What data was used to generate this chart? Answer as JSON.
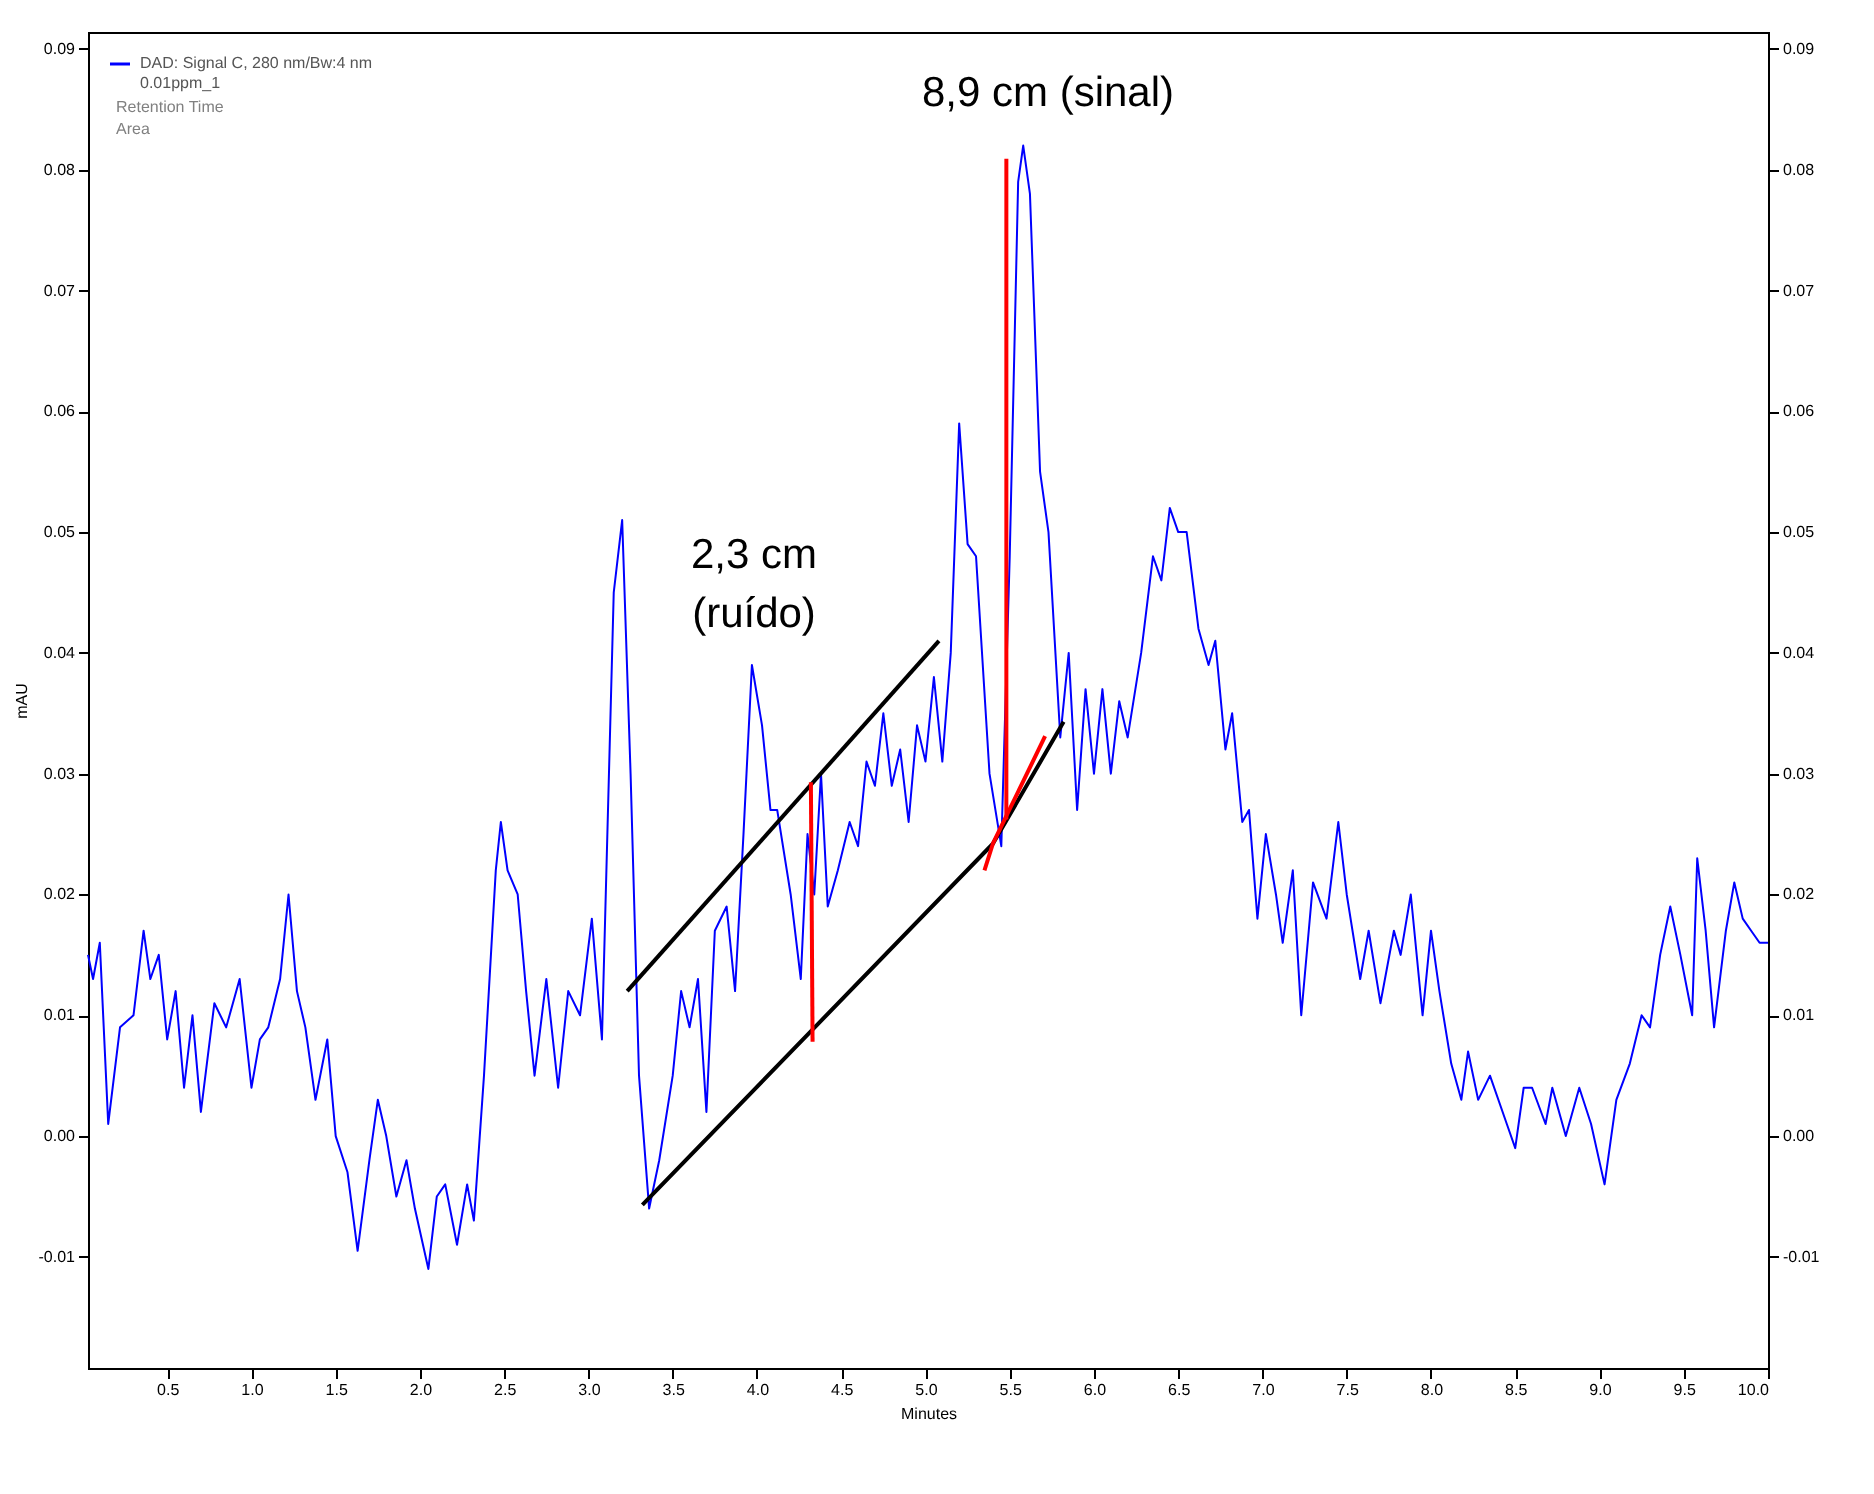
{
  "chart_data": {
    "type": "line",
    "xlabel": "Minutes",
    "ylabel": "mAU",
    "xlim": [
      0.03,
      10.0
    ],
    "ylim": [
      -0.0192,
      0.0914
    ],
    "y2lim": [
      -0.0192,
      0.0914
    ],
    "xticks": [
      {
        "value": 0.5,
        "label": "0.5"
      },
      {
        "value": 1,
        "label": "1.0"
      },
      {
        "value": 1.5,
        "label": "1.5"
      },
      {
        "value": 2,
        "label": "2.0"
      },
      {
        "value": 2.5,
        "label": "2.5"
      },
      {
        "value": 3,
        "label": "3.0"
      },
      {
        "value": 3.5,
        "label": "3.5"
      },
      {
        "value": 4,
        "label": "4.0"
      },
      {
        "value": 4.5,
        "label": "4.5"
      },
      {
        "value": 5,
        "label": "5.0"
      },
      {
        "value": 5.5,
        "label": "5.5"
      },
      {
        "value": 6,
        "label": "6.0"
      },
      {
        "value": 6.5,
        "label": "6.5"
      },
      {
        "value": 7,
        "label": "7.0"
      },
      {
        "value": 7.5,
        "label": "7.5"
      },
      {
        "value": 8,
        "label": "8.0"
      },
      {
        "value": 8.5,
        "label": "8.5"
      },
      {
        "value": 9,
        "label": "9.0"
      },
      {
        "value": 9.5,
        "label": "9.5"
      },
      {
        "value": 10,
        "label": "10.0"
      }
    ],
    "yticks": [
      {
        "value": -0.01,
        "label": "-0.01"
      },
      {
        "value": 0,
        "label": "0.00"
      },
      {
        "value": 0.01,
        "label": "0.01"
      },
      {
        "value": 0.02,
        "label": "0.02"
      },
      {
        "value": 0.03,
        "label": "0.03"
      },
      {
        "value": 0.04,
        "label": "0.04"
      },
      {
        "value": 0.05,
        "label": "0.05"
      },
      {
        "value": 0.06,
        "label": "0.06"
      },
      {
        "value": 0.07,
        "label": "0.07"
      },
      {
        "value": 0.08,
        "label": "0.08"
      },
      {
        "value": 0.09,
        "label": "0.09"
      }
    ],
    "y2ticks": [
      {
        "value": -0.01,
        "label": "-0.01"
      },
      {
        "value": 0,
        "label": "0.00"
      },
      {
        "value": 0.01,
        "label": "0.01"
      },
      {
        "value": 0.02,
        "label": "0.02"
      },
      {
        "value": 0.03,
        "label": "0.03"
      },
      {
        "value": 0.04,
        "label": "0.04"
      },
      {
        "value": 0.05,
        "label": "0.05"
      },
      {
        "value": 0.06,
        "label": "0.06"
      },
      {
        "value": 0.07,
        "label": "0.07"
      },
      {
        "value": 0.08,
        "label": "0.08"
      },
      {
        "value": 0.09,
        "label": "0.09"
      }
    ],
    "grid": false,
    "legend": "top left",
    "line_style": "solid",
    "marker": "none",
    "series": [
      {
        "name": "DAD: Signal C, 280 nm/Bw:4 nm\n0.01ppm_1",
        "color": "#0000ff",
        "x": [
          0.03,
          0.06,
          0.1,
          0.15,
          0.22,
          0.3,
          0.36,
          0.4,
          0.45,
          0.5,
          0.55,
          0.6,
          0.65,
          0.7,
          0.78,
          0.85,
          0.93,
          1.0,
          1.05,
          1.1,
          1.17,
          1.22,
          1.27,
          1.32,
          1.38,
          1.45,
          1.5,
          1.57,
          1.63,
          1.7,
          1.75,
          1.8,
          1.86,
          1.92,
          1.97,
          2.05,
          2.1,
          2.15,
          2.22,
          2.28,
          2.32,
          2.38,
          2.45,
          2.48,
          2.52,
          2.58,
          2.63,
          2.68,
          2.75,
          2.82,
          2.88,
          2.95,
          3.02,
          3.08,
          3.15,
          3.2,
          3.25,
          3.3,
          3.36,
          3.42,
          3.5,
          3.55,
          3.6,
          3.65,
          3.7,
          3.75,
          3.82,
          3.87,
          3.92,
          3.97,
          4.03,
          4.08,
          4.12,
          4.2,
          4.26,
          4.3,
          4.34,
          4.38,
          4.42,
          4.48,
          4.55,
          4.6,
          4.65,
          4.7,
          4.75,
          4.8,
          4.85,
          4.9,
          4.95,
          5.0,
          5.05,
          5.1,
          5.15,
          5.2,
          5.25,
          5.3,
          5.38,
          5.45,
          5.5,
          5.55,
          5.58,
          5.62,
          5.68,
          5.73,
          5.8,
          5.85,
          5.9,
          5.95,
          6.0,
          6.05,
          6.1,
          6.15,
          6.2,
          6.28,
          6.35,
          6.4,
          6.45,
          6.5,
          6.55,
          6.62,
          6.68,
          6.72,
          6.78,
          6.82,
          6.88,
          6.92,
          6.97,
          7.02,
          7.08,
          7.12,
          7.18,
          7.23,
          7.3,
          7.38,
          7.45,
          7.5,
          7.58,
          7.63,
          7.7,
          7.78,
          7.82,
          7.88,
          7.95,
          8.0,
          8.05,
          8.12,
          8.18,
          8.22,
          8.28,
          8.35,
          8.45,
          8.5,
          8.55,
          8.6,
          8.68,
          8.72,
          8.8,
          8.88,
          8.95,
          9.03,
          9.1,
          9.18,
          9.25,
          9.3,
          9.36,
          9.42,
          9.48,
          9.55,
          9.58,
          9.63,
          9.68,
          9.75,
          9.8,
          9.85,
          9.9,
          9.95,
          10.0
        ],
        "values": [
          0.015,
          0.013,
          0.016,
          0.001,
          0.009,
          0.01,
          0.017,
          0.013,
          0.015,
          0.008,
          0.012,
          0.004,
          0.01,
          0.002,
          0.011,
          0.009,
          0.013,
          0.004,
          0.008,
          0.009,
          0.013,
          0.02,
          0.012,
          0.009,
          0.003,
          0.008,
          0.0,
          -0.003,
          -0.0095,
          -0.002,
          0.003,
          0.0,
          -0.005,
          -0.002,
          -0.006,
          -0.011,
          -0.005,
          -0.004,
          -0.009,
          -0.004,
          -0.007,
          0.005,
          0.022,
          0.026,
          0.022,
          0.02,
          0.012,
          0.005,
          0.013,
          0.004,
          0.012,
          0.01,
          0.018,
          0.008,
          0.045,
          0.051,
          0.03,
          0.005,
          -0.006,
          -0.002,
          0.005,
          0.012,
          0.009,
          0.013,
          0.002,
          0.017,
          0.019,
          0.012,
          0.025,
          0.039,
          0.034,
          0.027,
          0.027,
          0.02,
          0.013,
          0.025,
          0.02,
          0.03,
          0.019,
          0.022,
          0.026,
          0.024,
          0.031,
          0.029,
          0.035,
          0.029,
          0.032,
          0.026,
          0.034,
          0.031,
          0.038,
          0.031,
          0.04,
          0.059,
          0.049,
          0.048,
          0.03,
          0.024,
          0.048,
          0.079,
          0.082,
          0.078,
          0.055,
          0.05,
          0.033,
          0.04,
          0.027,
          0.037,
          0.03,
          0.037,
          0.03,
          0.036,
          0.033,
          0.04,
          0.048,
          0.046,
          0.052,
          0.05,
          0.05,
          0.042,
          0.039,
          0.041,
          0.032,
          0.035,
          0.026,
          0.027,
          0.018,
          0.025,
          0.02,
          0.016,
          0.022,
          0.01,
          0.021,
          0.018,
          0.026,
          0.02,
          0.013,
          0.017,
          0.011,
          0.017,
          0.015,
          0.02,
          0.01,
          0.017,
          0.012,
          0.006,
          0.003,
          0.007,
          0.003,
          0.005,
          0.001,
          -0.001,
          0.004,
          0.004,
          0.001,
          0.004,
          0.0,
          0.004,
          0.001,
          -0.004,
          0.003,
          0.006,
          0.01,
          0.009,
          0.015,
          0.019,
          0.015,
          0.01,
          0.023,
          0.017,
          0.009,
          0.017,
          0.021,
          0.018,
          0.017,
          0.016,
          0.016
        ]
      },
      {
        "color": "#000000",
        "x": [
          3.23,
          5.08
        ],
        "values": [
          0.012,
          0.041
        ]
      },
      {
        "color": "#000000",
        "x": [
          3.32,
          5.4,
          5.82
        ],
        "values": [
          -0.0057,
          0.0242,
          0.0343
        ]
      },
      {
        "color": "#ff0000",
        "x": [
          4.32,
          4.33
        ],
        "values": [
          0.0293,
          0.0078
        ]
      },
      {
        "color": "#ff0000",
        "x": [
          5.48,
          5.48
        ],
        "values": [
          0.0809,
          0.0262
        ]
      },
      {
        "color": "#ff0000",
        "x": [
          5.35,
          5.4,
          5.71
        ],
        "values": [
          0.022,
          0.0242,
          0.0331
        ]
      }
    ],
    "annotations": [
      "Retention Time",
      "Area",
      "8,9 cm (sinal)",
      "2,3 cm\n(ruído)"
    ]
  }
}
